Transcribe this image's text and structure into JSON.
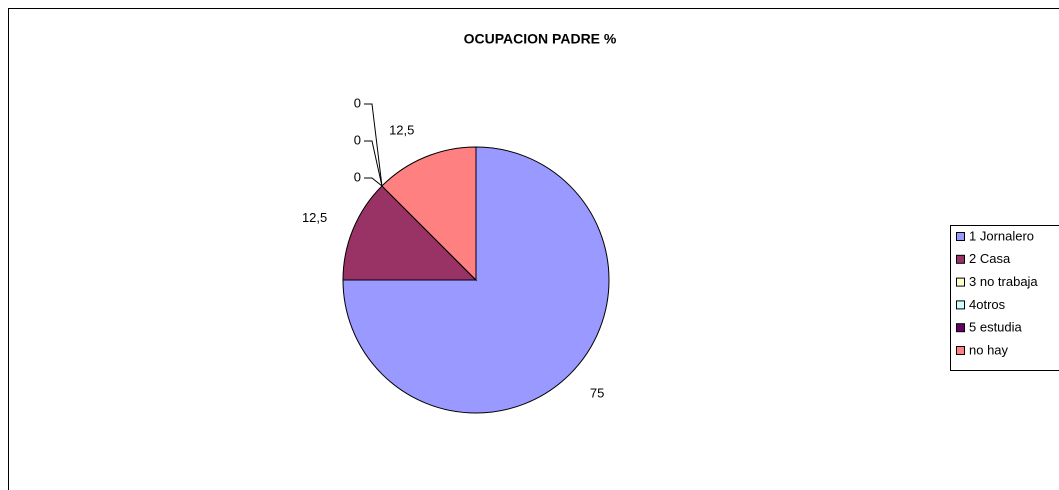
{
  "chart_data": {
    "type": "pie",
    "title": "OCUPACION PADRE %",
    "categories": [
      "1 Jornalero",
      "2 Casa",
      "3 no trabaja",
      "4otros",
      "5 estudia",
      "no hay"
    ],
    "values": [
      75,
      12.5,
      0,
      0,
      0,
      12.5
    ],
    "value_labels": [
      "75",
      "12,5",
      "0",
      "0",
      "0",
      "12,5"
    ],
    "colors": [
      "#9999ff",
      "#993366",
      "#ffffcc",
      "#ccffff",
      "#660066",
      "#ff8080"
    ],
    "legend": "right"
  }
}
